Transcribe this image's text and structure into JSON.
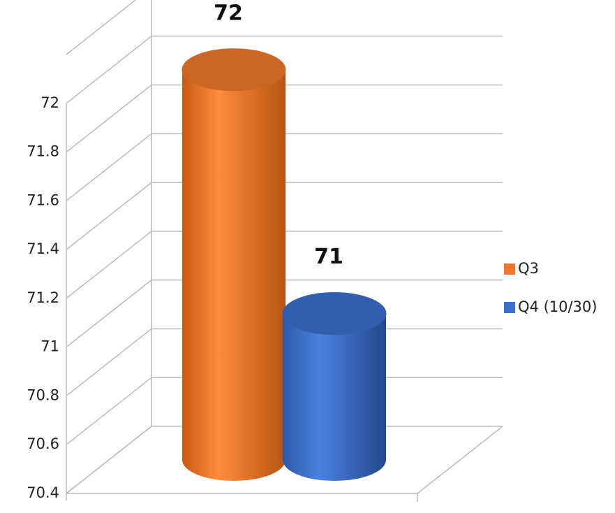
{
  "chart_data": {
    "type": "bar3d",
    "series": [
      {
        "name": "Q3",
        "color": "#f0782a",
        "values": [
          72
        ]
      },
      {
        "name": "Q4 (10/30)",
        "color": "#3a6fcc",
        "values": [
          71
        ]
      }
    ],
    "ylim": [
      70.4,
      72.2
    ],
    "yticks": [
      70.4,
      70.6,
      70.8,
      71,
      71.2,
      71.4,
      71.6,
      71.8,
      72
    ],
    "grid": true,
    "legend": "right"
  }
}
